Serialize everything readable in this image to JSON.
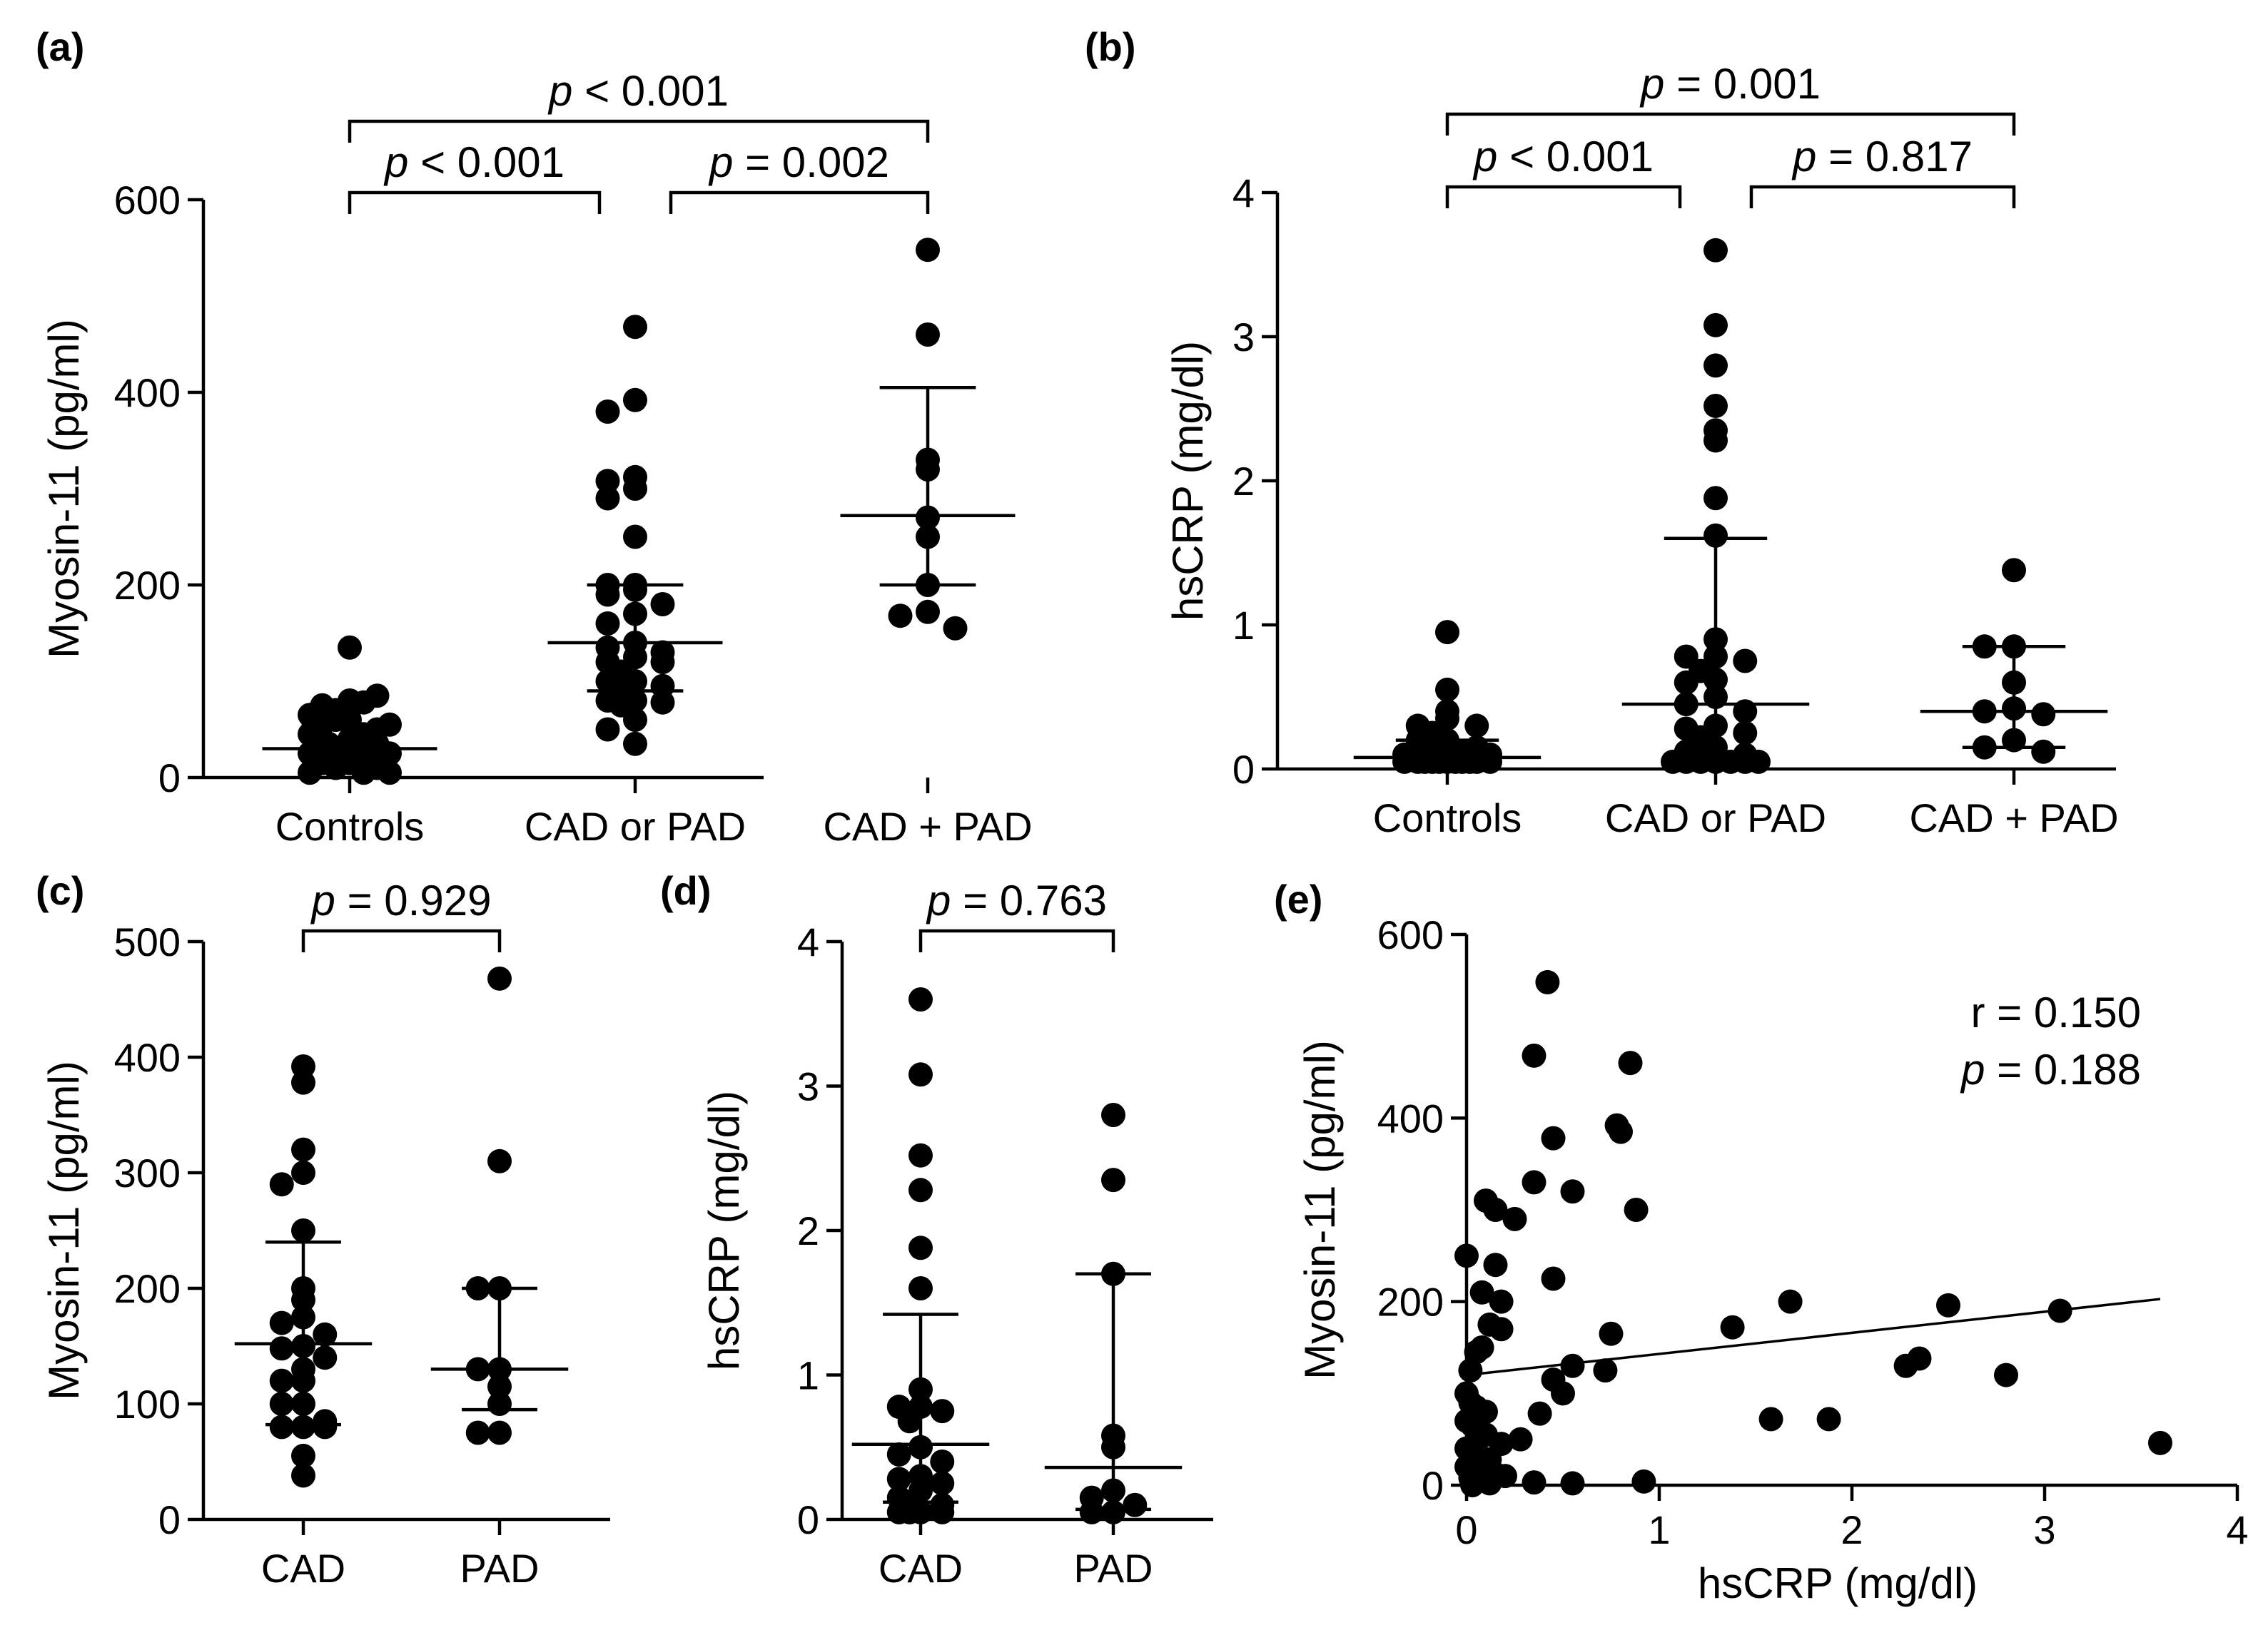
{
  "chart_data": [
    {
      "id": "a",
      "type": "scatter",
      "panel_label": "(a)",
      "ylabel": "Myosin-11 (pg/ml)",
      "ylim": [
        0,
        600
      ],
      "yticks": [
        "0",
        "200",
        "400",
        "600"
      ],
      "categories": [
        "Controls",
        "CAD or PAD",
        "CAD + PAD"
      ],
      "series": [
        {
          "name": "Controls",
          "values": [
            135,
            80,
            75,
            85,
            70,
            78,
            60,
            65,
            55,
            50,
            60,
            45,
            40,
            40,
            35,
            30,
            30,
            25,
            25,
            20,
            20,
            15,
            15,
            10,
            10,
            5,
            5,
            5,
            35,
            45,
            55,
            25,
            15
          ],
          "median": 30,
          "iqr": [
            10,
            55
          ]
        },
        {
          "name": "CAD or PAD",
          "values": [
            468,
            392,
            380,
            312,
            308,
            300,
            290,
            250,
            200,
            200,
            195,
            190,
            180,
            170,
            160,
            140,
            135,
            130,
            125,
            120,
            120,
            110,
            100,
            100,
            95,
            90,
            80,
            80,
            78,
            75,
            60,
            50,
            35
          ],
          "median": 140,
          "iqr": [
            90,
            200
          ]
        },
        {
          "name": "CAD + PAD",
          "values": [
            548,
            460,
            330,
            320,
            270,
            250,
            200,
            172,
            168,
            155
          ],
          "median": 272,
          "iqr": [
            200,
            405
          ]
        }
      ],
      "brackets": [
        {
          "from": 0,
          "to": 1,
          "p": "p",
          "text": " < 0.001",
          "level": 1
        },
        {
          "from": 1,
          "to": 2,
          "p": "p",
          "text": " = 0.002",
          "level": 1
        },
        {
          "from": 0,
          "to": 2,
          "p": "p",
          "text": " < 0.001",
          "level": 2
        }
      ]
    },
    {
      "id": "b",
      "type": "scatter",
      "panel_label": "(b)",
      "ylabel": "hsCRP (mg/dl)",
      "ylim": [
        0,
        4
      ],
      "yticks": [
        "0",
        "1",
        "2",
        "3",
        "4"
      ],
      "categories": [
        "Controls",
        "CAD or PAD",
        "CAD + PAD"
      ],
      "series": [
        {
          "name": "Controls",
          "values": [
            0.95,
            0.55,
            0.4,
            0.35,
            0.3,
            0.3,
            0.25,
            0.2,
            0.2,
            0.15,
            0.15,
            0.12,
            0.1,
            0.1,
            0.1,
            0.08,
            0.08,
            0.05,
            0.05,
            0.05,
            0.05,
            0.05,
            0.05,
            0.05,
            0.05,
            0.05,
            0.05,
            0.05
          ],
          "median": 0.08,
          "iqr": [
            0.03,
            0.2
          ]
        },
        {
          "name": "CAD or PAD",
          "values": [
            3.6,
            3.08,
            2.8,
            2.52,
            2.35,
            2.28,
            1.88,
            1.62,
            0.9,
            0.78,
            0.78,
            0.75,
            0.68,
            0.62,
            0.6,
            0.5,
            0.45,
            0.4,
            0.3,
            0.28,
            0.25,
            0.22,
            0.15,
            0.12,
            0.1,
            0.08,
            0.05,
            0.05,
            0.05,
            0.05,
            0.05,
            0.05,
            0.05
          ],
          "median": 0.45,
          "iqr": [
            0.1,
            1.6
          ]
        },
        {
          "name": "CAD + PAD",
          "values": [
            1.38,
            0.85,
            0.85,
            0.6,
            0.42,
            0.4,
            0.38,
            0.2,
            0.15,
            0.12
          ],
          "median": 0.4,
          "iqr": [
            0.15,
            0.85
          ]
        }
      ],
      "brackets": [
        {
          "from": 0,
          "to": 1,
          "p": "p",
          "text": " < 0.001",
          "level": 1
        },
        {
          "from": 1,
          "to": 2,
          "p": "p",
          "text": " = 0.817",
          "level": 1
        },
        {
          "from": 0,
          "to": 2,
          "p": "p",
          "text": " = 0.001",
          "level": 2
        }
      ]
    },
    {
      "id": "c",
      "type": "scatter",
      "panel_label": "(c)",
      "ylabel": "Myosin-11 (pg/ml)",
      "ylim": [
        0,
        500
      ],
      "yticks": [
        "0",
        "100",
        "200",
        "300",
        "400",
        "500"
      ],
      "categories": [
        "CAD",
        "PAD"
      ],
      "series": [
        {
          "name": "CAD",
          "values": [
            392,
            378,
            320,
            300,
            290,
            250,
            200,
            190,
            175,
            170,
            160,
            150,
            148,
            140,
            130,
            120,
            120,
            100,
            100,
            85,
            80,
            80,
            80,
            55,
            38
          ],
          "median": 152,
          "iqr": [
            82,
            240
          ]
        },
        {
          "name": "PAD",
          "values": [
            468,
            310,
            200,
            200,
            130,
            130,
            115,
            100,
            75,
            75
          ],
          "median": 130,
          "iqr": [
            95,
            200
          ]
        }
      ],
      "brackets": [
        {
          "from": 0,
          "to": 1,
          "p": "p",
          "text": " = 0.929",
          "level": 1
        }
      ]
    },
    {
      "id": "d",
      "type": "scatter",
      "panel_label": "(d)",
      "ylabel": "hsCRP (mg/dl)",
      "ylim": [
        0,
        4
      ],
      "yticks": [
        "0",
        "1",
        "2",
        "3",
        "4"
      ],
      "categories": [
        "CAD",
        "PAD"
      ],
      "series": [
        {
          "name": "CAD",
          "values": [
            3.6,
            3.08,
            2.52,
            2.28,
            1.88,
            1.6,
            0.9,
            0.78,
            0.78,
            0.75,
            0.68,
            0.5,
            0.45,
            0.4,
            0.3,
            0.28,
            0.25,
            0.2,
            0.15,
            0.1,
            0.08,
            0.05,
            0.05,
            0.05,
            0.05
          ],
          "median": 0.52,
          "iqr": [
            0.12,
            1.42
          ]
        },
        {
          "name": "PAD",
          "values": [
            2.8,
            2.35,
            1.7,
            0.58,
            0.5,
            0.2,
            0.15,
            0.1,
            0.05,
            0.05
          ],
          "median": 0.36,
          "iqr": [
            0.07,
            1.7
          ]
        }
      ],
      "brackets": [
        {
          "from": 0,
          "to": 1,
          "p": "p",
          "text": " = 0.763",
          "level": 1
        }
      ]
    },
    {
      "id": "e",
      "type": "scatter",
      "panel_label": "(e)",
      "xlabel": "hsCRP (mg/dl)",
      "ylabel": "Myosin-11 (pg/ml)",
      "xlim": [
        0,
        4
      ],
      "ylim": [
        0,
        600
      ],
      "xticks": [
        "0",
        "1",
        "2",
        "3",
        "4"
      ],
      "yticks": [
        "0",
        "200",
        "400",
        "600"
      ],
      "points": [
        [
          0.42,
          548
        ],
        [
          0.35,
          468
        ],
        [
          0.85,
          460
        ],
        [
          0.78,
          392
        ],
        [
          0.8,
          385
        ],
        [
          0.45,
          378
        ],
        [
          0.35,
          330
        ],
        [
          0.55,
          320
        ],
        [
          0.88,
          300
        ],
        [
          0.1,
          310
        ],
        [
          0.15,
          300
        ],
        [
          0.25,
          290
        ],
        [
          0.0,
          250
        ],
        [
          0.15,
          240
        ],
        [
          0.45,
          225
        ],
        [
          0.08,
          210
        ],
        [
          0.18,
          200
        ],
        [
          0.12,
          175
        ],
        [
          0.18,
          170
        ],
        [
          0.75,
          165
        ],
        [
          1.38,
          172
        ],
        [
          1.68,
          200
        ],
        [
          2.5,
          196
        ],
        [
          3.08,
          190
        ],
        [
          2.35,
          138
        ],
        [
          2.28,
          130
        ],
        [
          2.8,
          120
        ],
        [
          1.58,
          72
        ],
        [
          1.88,
          72
        ],
        [
          3.6,
          46
        ],
        [
          0.02,
          125
        ],
        [
          0.05,
          145
        ],
        [
          0.08,
          150
        ],
        [
          0.55,
          130
        ],
        [
          0.72,
          125
        ],
        [
          0.45,
          115
        ],
        [
          0.5,
          100
        ],
        [
          0.0,
          100
        ],
        [
          0.02,
          90
        ],
        [
          0.05,
          85
        ],
        [
          0.1,
          80
        ],
        [
          0.38,
          78
        ],
        [
          0.0,
          70
        ],
        [
          0.03,
          65
        ],
        [
          0.05,
          60
        ],
        [
          0.1,
          55
        ],
        [
          0.28,
          50
        ],
        [
          0.18,
          45
        ],
        [
          0.0,
          40
        ],
        [
          0.05,
          35
        ],
        [
          0.08,
          30
        ],
        [
          0.12,
          28
        ],
        [
          0.0,
          20
        ],
        [
          0.05,
          18
        ],
        [
          0.1,
          15
        ],
        [
          0.15,
          12
        ],
        [
          0.2,
          10
        ],
        [
          0.02,
          8
        ],
        [
          0.08,
          5
        ],
        [
          0.35,
          3
        ],
        [
          0.55,
          2
        ],
        [
          0.92,
          4
        ],
        [
          0.12,
          2
        ],
        [
          0.03,
          0
        ]
      ],
      "fit": {
        "intercept": 120,
        "slope": 23
      },
      "stats": [
        {
          "p": "",
          "text": "r = 0.150"
        },
        {
          "p": "p",
          "text": " = 0.188"
        }
      ]
    }
  ]
}
